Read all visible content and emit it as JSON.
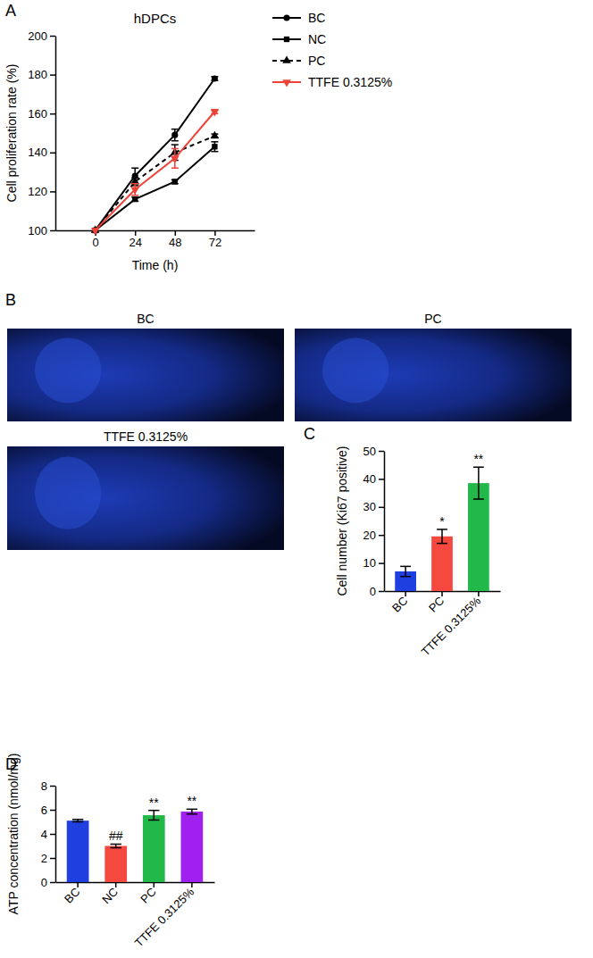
{
  "chart_data": [
    {
      "type": "line",
      "panel": "A",
      "title": "hDPCs",
      "x": [
        0,
        24,
        48,
        72
      ],
      "xlim": [
        -24,
        96
      ],
      "xticks": [
        0,
        24,
        48,
        72
      ],
      "ylim": [
        100,
        200
      ],
      "yticks": [
        100,
        120,
        140,
        160,
        180,
        200
      ],
      "x_label": "Time (h)",
      "y_label": "Cell proliferation rate (%)",
      "legend": "right",
      "series": [
        {
          "name": "BC",
          "color": "#000000",
          "marker": "circle",
          "line_style": "solid",
          "values": [
            100,
            128,
            149,
            178
          ],
          "errors": [
            0,
            4,
            3,
            1
          ]
        },
        {
          "name": "NC",
          "color": "#000000",
          "marker": "square",
          "line_style": "solid",
          "values": [
            100,
            116,
            125,
            143
          ],
          "errors": [
            0,
            1,
            1,
            2.5
          ]
        },
        {
          "name": "PC",
          "color": "#000000",
          "marker": "triangle-up",
          "line_style": "dashed",
          "values": [
            100,
            125,
            140,
            148.5
          ],
          "errors": [
            0,
            2,
            4,
            1
          ]
        },
        {
          "name": "TTFE 0.3125%",
          "color": "#ee4236",
          "marker": "triangle-down",
          "line_style": "solid",
          "values": [
            100,
            121,
            137,
            161
          ],
          "errors": [
            0,
            3,
            5,
            1
          ]
        }
      ]
    },
    {
      "type": "image",
      "panel": "B",
      "titles": [
        "BC",
        "PC",
        "TTFE 0.3125%"
      ]
    },
    {
      "type": "bar",
      "panel": "C",
      "categories": [
        "BC",
        "PC",
        "TTFE 0.3125%"
      ],
      "values": [
        7,
        19.5,
        38.5
      ],
      "errors": [
        1.8,
        2.5,
        5.7
      ],
      "colors": [
        "#1f3fe0",
        "#f5483e",
        "#22b84a"
      ],
      "significance": [
        null,
        "*",
        "**"
      ],
      "ylim": [
        0,
        50
      ],
      "yticks": [
        0,
        10,
        20,
        30,
        40,
        50
      ],
      "y_label": "Cell number (Ki67 positive)"
    },
    {
      "type": "bar",
      "panel": "D",
      "categories": [
        "BC",
        "NC",
        "PC",
        "TTFE 0.3125%"
      ],
      "values": [
        5.1,
        3.0,
        5.55,
        5.85
      ],
      "errors": [
        0.1,
        0.15,
        0.4,
        0.2
      ],
      "colors": [
        "#1f3fe0",
        "#f5483e",
        "#22b84a",
        "#a020f0"
      ],
      "significance": [
        null,
        "##",
        "**",
        "**"
      ],
      "ylim": [
        0,
        8
      ],
      "yticks": [
        0,
        2,
        4,
        6,
        8
      ],
      "y_label": "ATP concentration (nmol/mg)"
    }
  ]
}
